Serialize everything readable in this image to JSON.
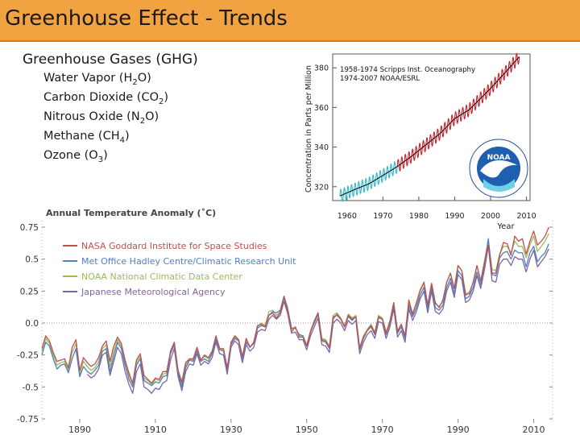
{
  "slide": {
    "title": "Greenhouse Effect - Trends",
    "bullets_heading": "Greenhouse Gases (GHG)",
    "gases": [
      {
        "name": "Water Vapor (H",
        "sub": "2",
        "tail": "O)"
      },
      {
        "name": "Carbon Dioxide (CO",
        "sub": "2",
        "tail": ")"
      },
      {
        "name": "Nitrous Oxide (N",
        "sub": "2",
        "tail": "O)"
      },
      {
        "name": "Methane (CH",
        "sub": "4",
        "tail": ")"
      },
      {
        "name": "Ozone (O",
        "sub": "3",
        "tail": ")"
      }
    ]
  },
  "chart_data": [
    {
      "type": "line",
      "title": "",
      "xlabel": "Year",
      "ylabel": "Concentration in Parts per Million",
      "xlim": [
        1956,
        2011
      ],
      "ylim": [
        313,
        387
      ],
      "x_ticks": [
        1960,
        1970,
        1980,
        1990,
        2000,
        2010
      ],
      "y_ticks": [
        320,
        340,
        360,
        380
      ],
      "legend": [
        "1958-1974 Scripps Inst. Oceanography",
        "1974-2007 NOAA/ESRL"
      ],
      "logo": "NOAA",
      "colors": {
        "scripps": "#2fb8c8",
        "noaa": "#c8202a",
        "trend": "#000000"
      },
      "series": [
        {
          "name": "1958-1974 Scripps Inst. Oceanography",
          "x": [
            1958,
            1962,
            1966,
            1970,
            1974
          ],
          "y": [
            315.3,
            318.5,
            321.4,
            325.7,
            330.2
          ],
          "seasonal_amplitude_ppm": 3.2
        },
        {
          "name": "1974-2007 NOAA/ESRL",
          "x": [
            1974,
            1978,
            1982,
            1986,
            1990,
            1994,
            2000,
            2004,
            2008
          ],
          "y": [
            330.2,
            335.4,
            341.2,
            347.0,
            354.4,
            358.8,
            369.6,
            377.5,
            385.6
          ],
          "seasonal_amplitude_ppm": 3.2
        }
      ]
    },
    {
      "type": "line",
      "title": "Annual Temperature Anomaly (˚C)",
      "xlabel": "",
      "ylabel": "",
      "xlim": [
        1880,
        2015
      ],
      "ylim": [
        -0.75,
        0.75
      ],
      "x_ticks": [
        1890,
        1910,
        1930,
        1950,
        1970,
        1990,
        2010
      ],
      "y_ticks": [
        0.75,
        0.5,
        0.25,
        0.0,
        -0.25,
        -0.5,
        -0.75
      ],
      "y_tick_labels": [
        "0.75",
        "0.5",
        "0.25",
        "0.0",
        "-0.25",
        "-0.5",
        "-0.75"
      ],
      "legend_position": "top-left",
      "x": [
        1880,
        1881,
        1882,
        1883,
        1884,
        1885,
        1886,
        1887,
        1888,
        1889,
        1890,
        1891,
        1892,
        1893,
        1894,
        1895,
        1896,
        1897,
        1898,
        1899,
        1900,
        1901,
        1902,
        1903,
        1904,
        1905,
        1906,
        1907,
        1908,
        1909,
        1910,
        1911,
        1912,
        1913,
        1914,
        1915,
        1916,
        1917,
        1918,
        1919,
        1920,
        1921,
        1922,
        1923,
        1924,
        1925,
        1926,
        1927,
        1928,
        1929,
        1930,
        1931,
        1932,
        1933,
        1934,
        1935,
        1936,
        1937,
        1938,
        1939,
        1940,
        1941,
        1942,
        1943,
        1944,
        1945,
        1946,
        1947,
        1948,
        1949,
        1950,
        1951,
        1952,
        1953,
        1954,
        1955,
        1956,
        1957,
        1958,
        1959,
        1960,
        1961,
        1962,
        1963,
        1964,
        1965,
        1966,
        1967,
        1968,
        1969,
        1970,
        1971,
        1972,
        1973,
        1974,
        1975,
        1976,
        1977,
        1978,
        1979,
        1980,
        1981,
        1982,
        1983,
        1984,
        1985,
        1986,
        1987,
        1988,
        1989,
        1990,
        1991,
        1992,
        1993,
        1994,
        1995,
        1996,
        1997,
        1998,
        1999,
        2000,
        2001,
        2002,
        2003,
        2004,
        2005,
        2006,
        2007,
        2008,
        2009,
        2010,
        2011,
        2012,
        2013,
        2014
      ],
      "series": [
        {
          "name": "NASA Goddard Institute for Space Studies",
          "color": "#c0504d",
          "y": [
            -0.2,
            -0.1,
            -0.14,
            -0.23,
            -0.3,
            -0.29,
            -0.28,
            -0.35,
            -0.19,
            -0.13,
            -0.37,
            -0.27,
            -0.31,
            -0.34,
            -0.32,
            -0.27,
            -0.18,
            -0.14,
            -0.3,
            -0.18,
            -0.11,
            -0.16,
            -0.29,
            -0.39,
            -0.47,
            -0.29,
            -0.24,
            -0.41,
            -0.44,
            -0.47,
            -0.43,
            -0.44,
            -0.38,
            -0.38,
            -0.22,
            -0.15,
            -0.37,
            -0.46,
            -0.31,
            -0.28,
            -0.28,
            -0.19,
            -0.29,
            -0.25,
            -0.27,
            -0.22,
            -0.1,
            -0.2,
            -0.2,
            -0.35,
            -0.15,
            -0.1,
            -0.13,
            -0.26,
            -0.12,
            -0.19,
            -0.15,
            -0.02,
            -0.01,
            -0.03,
            0.06,
            0.08,
            0.04,
            0.08,
            0.2,
            0.09,
            -0.07,
            -0.03,
            -0.11,
            -0.11,
            -0.18,
            -0.07,
            0.01,
            0.08,
            -0.13,
            -0.14,
            -0.19,
            0.05,
            0.06,
            0.03,
            -0.03,
            0.06,
            0.03,
            0.05,
            -0.2,
            -0.11,
            -0.06,
            -0.02,
            -0.08,
            0.05,
            0.03,
            -0.08,
            0.01,
            0.16,
            -0.07,
            -0.01,
            -0.1,
            0.18,
            0.07,
            0.16,
            0.26,
            0.32,
            0.14,
            0.31,
            0.16,
            0.12,
            0.18,
            0.32,
            0.39,
            0.27,
            0.45,
            0.41,
            0.22,
            0.23,
            0.32,
            0.45,
            0.33,
            0.47,
            0.61,
            0.39,
            0.39,
            0.53,
            0.63,
            0.62,
            0.53,
            0.68,
            0.64,
            0.66,
            0.54,
            0.64,
            0.72,
            0.61,
            0.64,
            0.68,
            0.75
          ]
        },
        {
          "name": "Met Office Hadley Centre/Climatic Research Unit",
          "color": "#4f81bd",
          "y": [
            -0.25,
            -0.15,
            -0.18,
            -0.28,
            -0.36,
            -0.33,
            -0.32,
            -0.39,
            -0.28,
            -0.2,
            -0.42,
            -0.34,
            -0.38,
            -0.4,
            -0.37,
            -0.33,
            -0.22,
            -0.2,
            -0.38,
            -0.26,
            -0.15,
            -0.2,
            -0.33,
            -0.44,
            -0.5,
            -0.33,
            -0.28,
            -0.45,
            -0.47,
            -0.49,
            -0.46,
            -0.47,
            -0.42,
            -0.41,
            -0.24,
            -0.17,
            -0.39,
            -0.5,
            -0.35,
            -0.29,
            -0.3,
            -0.22,
            -0.3,
            -0.28,
            -0.3,
            -0.24,
            -0.13,
            -0.21,
            -0.22,
            -0.37,
            -0.17,
            -0.12,
            -0.14,
            -0.28,
            -0.15,
            -0.19,
            -0.16,
            -0.04,
            -0.02,
            -0.03,
            0.06,
            0.09,
            0.08,
            0.1,
            0.21,
            0.1,
            -0.04,
            -0.04,
            -0.09,
            -0.1,
            -0.18,
            -0.07,
            0.0,
            0.07,
            -0.14,
            -0.15,
            -0.2,
            0.03,
            0.07,
            0.03,
            -0.03,
            0.05,
            0.02,
            0.05,
            -0.21,
            -0.12,
            -0.06,
            -0.03,
            -0.09,
            0.04,
            0.03,
            -0.09,
            0.0,
            0.14,
            -0.08,
            -0.03,
            -0.12,
            0.14,
            0.05,
            0.12,
            0.22,
            0.28,
            0.11,
            0.28,
            0.12,
            0.1,
            0.14,
            0.28,
            0.35,
            0.23,
            0.41,
            0.37,
            0.19,
            0.21,
            0.28,
            0.4,
            0.3,
            0.45,
            0.66,
            0.38,
            0.37,
            0.51,
            0.55,
            0.56,
            0.5,
            0.57,
            0.55,
            0.55,
            0.44,
            0.55,
            0.6,
            0.48,
            0.52,
            0.55,
            0.62
          ]
        },
        {
          "name": "NOAA National Climatic Data Center",
          "color": "#9bbb59",
          "y": [
            -0.22,
            -0.12,
            -0.16,
            -0.25,
            -0.33,
            -0.31,
            -0.3,
            -0.37,
            -0.23,
            -0.16,
            -0.4,
            -0.3,
            -0.34,
            -0.37,
            -0.35,
            -0.3,
            -0.2,
            -0.17,
            -0.34,
            -0.22,
            -0.13,
            -0.18,
            -0.31,
            -0.41,
            -0.48,
            -0.31,
            -0.26,
            -0.43,
            -0.45,
            -0.48,
            -0.44,
            -0.45,
            -0.4,
            -0.39,
            -0.23,
            -0.16,
            -0.38,
            -0.48,
            -0.33,
            -0.28,
            -0.29,
            -0.2,
            -0.29,
            -0.26,
            -0.28,
            -0.23,
            -0.11,
            -0.2,
            -0.21,
            -0.36,
            -0.16,
            -0.11,
            -0.13,
            -0.27,
            -0.13,
            -0.19,
            -0.15,
            -0.03,
            0.0,
            -0.02,
            0.09,
            0.1,
            0.06,
            0.09,
            0.21,
            0.12,
            -0.05,
            -0.03,
            -0.1,
            -0.1,
            -0.17,
            -0.06,
            0.02,
            0.08,
            -0.12,
            -0.13,
            -0.18,
            0.06,
            0.08,
            0.04,
            -0.02,
            0.07,
            0.04,
            0.06,
            -0.19,
            -0.1,
            -0.05,
            -0.01,
            -0.07,
            0.06,
            0.04,
            -0.07,
            0.02,
            0.16,
            -0.06,
            -0.01,
            -0.1,
            0.17,
            0.07,
            0.15,
            0.25,
            0.31,
            0.14,
            0.31,
            0.15,
            0.13,
            0.17,
            0.32,
            0.39,
            0.27,
            0.45,
            0.41,
            0.23,
            0.24,
            0.32,
            0.45,
            0.33,
            0.49,
            0.65,
            0.42,
            0.41,
            0.54,
            0.6,
            0.6,
            0.55,
            0.64,
            0.6,
            0.6,
            0.51,
            0.61,
            0.68,
            0.56,
            0.6,
            0.64,
            0.7
          ]
        },
        {
          "name": "Japanese Meteorological Agency",
          "color": "#8064a2",
          "y": [
            null,
            null,
            null,
            null,
            null,
            null,
            null,
            null,
            null,
            null,
            null,
            null,
            -0.4,
            -0.43,
            -0.41,
            -0.36,
            -0.25,
            -0.23,
            -0.41,
            -0.3,
            -0.19,
            -0.24,
            -0.38,
            -0.48,
            -0.55,
            -0.38,
            -0.32,
            -0.5,
            -0.52,
            -0.55,
            -0.51,
            -0.52,
            -0.47,
            -0.45,
            -0.29,
            -0.2,
            -0.42,
            -0.53,
            -0.38,
            -0.32,
            -0.33,
            -0.24,
            -0.33,
            -0.3,
            -0.32,
            -0.27,
            -0.15,
            -0.24,
            -0.25,
            -0.4,
            -0.19,
            -0.14,
            -0.17,
            -0.31,
            -0.17,
            -0.22,
            -0.19,
            -0.07,
            -0.05,
            -0.06,
            0.03,
            0.06,
            0.03,
            0.06,
            0.17,
            0.07,
            -0.08,
            -0.07,
            -0.13,
            -0.13,
            -0.21,
            -0.1,
            -0.03,
            0.04,
            -0.17,
            -0.18,
            -0.23,
            0.0,
            0.03,
            0.0,
            -0.06,
            0.02,
            -0.01,
            0.02,
            -0.24,
            -0.15,
            -0.09,
            -0.06,
            -0.12,
            0.01,
            0.0,
            -0.12,
            -0.03,
            0.11,
            -0.11,
            -0.06,
            -0.15,
            0.11,
            0.02,
            0.09,
            0.19,
            0.25,
            0.08,
            0.25,
            0.09,
            0.07,
            0.11,
            0.25,
            0.32,
            0.2,
            0.38,
            0.34,
            0.16,
            0.18,
            0.25,
            0.37,
            0.27,
            0.42,
            0.6,
            0.33,
            0.32,
            0.46,
            0.5,
            0.5,
            0.45,
            0.52,
            0.5,
            0.5,
            0.4,
            0.5,
            0.57,
            0.44,
            0.48,
            0.52,
            0.58
          ]
        }
      ]
    }
  ]
}
